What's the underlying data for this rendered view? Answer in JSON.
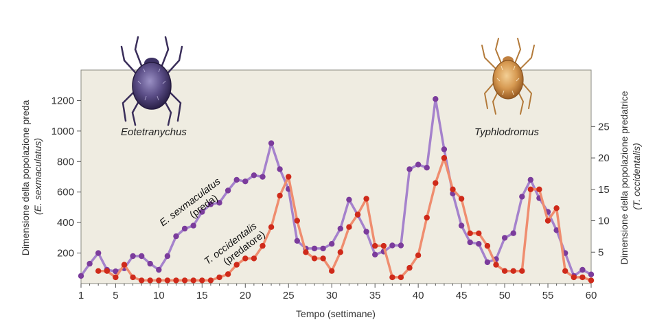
{
  "chart_data": {
    "type": "line",
    "x_label": "Tempo (settimane)",
    "y_left_label_line1": "Dimensione della popolazione preda",
    "y_left_label_line2": "(E. sexmaculatus)",
    "y_right_label_line1": "Dimensione della popolazione predatrice",
    "y_right_label_line2": "(T. occidentalis)",
    "x_range": [
      1,
      60
    ],
    "x_ticks": [
      1,
      5,
      10,
      15,
      20,
      25,
      30,
      35,
      40,
      45,
      50,
      55,
      60
    ],
    "y_left_range": [
      0,
      1400
    ],
    "y_left_ticks": [
      200,
      400,
      600,
      800,
      1000,
      1200
    ],
    "y_right_range": [
      0,
      34
    ],
    "y_right_ticks": [
      5,
      10,
      15,
      20,
      25
    ],
    "prey_species_label": "Eotetranychus",
    "predator_species_label": "Typhlodromus",
    "prey_series_label_line1": "E. sexmaculatus",
    "prey_series_label_line2": "(preda)",
    "predator_series_label_line1": "T. occidentalis",
    "predator_series_label_line2": "(predatore)",
    "series": [
      {
        "name": "E. sexmaculatus (preda)",
        "axis": "left",
        "color": "#a582cc",
        "marker_color": "#7b3c9c",
        "x": [
          1,
          2,
          3,
          4,
          5,
          6,
          7,
          8,
          9,
          10,
          11,
          12,
          13,
          14,
          15,
          16,
          17,
          18,
          19,
          20,
          21,
          22,
          23,
          24,
          25,
          26,
          27,
          28,
          29,
          30,
          31,
          32,
          33,
          34,
          35,
          36,
          37,
          38,
          39,
          40,
          41,
          42,
          43,
          44,
          45,
          46,
          47,
          48,
          49,
          50,
          51,
          52,
          53,
          54,
          55,
          56,
          57,
          58,
          59,
          60
        ],
        "values": [
          50,
          130,
          200,
          90,
          80,
          100,
          180,
          180,
          130,
          90,
          180,
          310,
          360,
          380,
          470,
          520,
          530,
          610,
          680,
          670,
          710,
          700,
          920,
          750,
          620,
          280,
          230,
          230,
          230,
          260,
          360,
          550,
          450,
          340,
          190,
          210,
          250,
          250,
          750,
          780,
          760,
          1210,
          880,
          590,
          380,
          270,
          260,
          140,
          160,
          300,
          330,
          570,
          680,
          560,
          470,
          350,
          200,
          50,
          90,
          60
        ]
      },
      {
        "name": "T. occidentalis (predatore)",
        "axis": "right",
        "color": "#ef8d6f",
        "marker_color": "#cf2a1a",
        "x": [
          3,
          4,
          5,
          6,
          7,
          8,
          9,
          10,
          11,
          12,
          13,
          14,
          15,
          16,
          17,
          18,
          19,
          20,
          21,
          22,
          23,
          24,
          25,
          26,
          27,
          28,
          29,
          30,
          31,
          32,
          33,
          34,
          35,
          36,
          37,
          38,
          39,
          40,
          41,
          42,
          43,
          44,
          45,
          46,
          47,
          48,
          49,
          50,
          51,
          52,
          53,
          54,
          55,
          56,
          57,
          58,
          59,
          60
        ],
        "values": [
          2,
          2,
          1,
          3,
          1,
          0.5,
          0.5,
          0.5,
          0.5,
          0.5,
          0.5,
          0.5,
          0.5,
          0.5,
          1,
          1.5,
          3,
          4,
          4,
          6,
          9,
          14,
          17,
          10,
          5,
          4,
          4,
          2,
          5,
          9,
          11,
          13.5,
          6,
          6,
          1,
          1,
          2.5,
          4.5,
          10.5,
          16,
          20,
          15,
          13.5,
          8,
          8,
          6,
          3,
          2,
          2,
          2,
          15,
          15,
          10,
          12,
          2,
          1,
          1,
          0.5
        ]
      }
    ]
  }
}
